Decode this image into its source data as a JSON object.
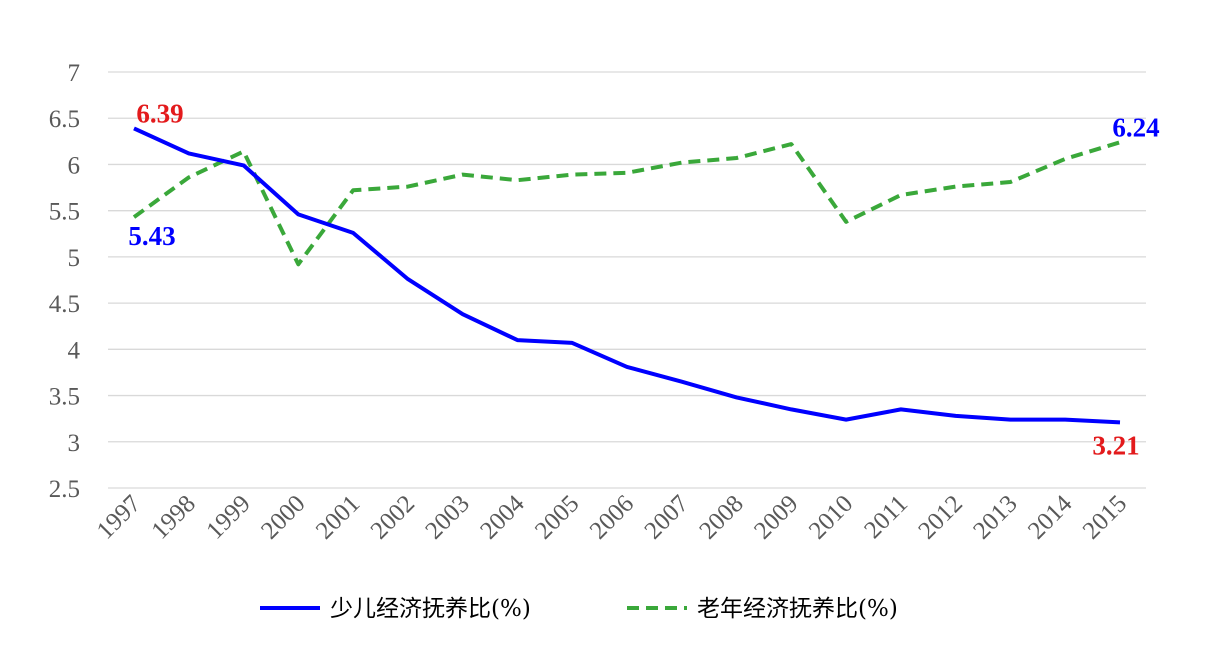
{
  "chart_data": {
    "type": "line",
    "x": [
      "1997",
      "1998",
      "1999",
      "2000",
      "2001",
      "2002",
      "2003",
      "2004",
      "2005",
      "2006",
      "2007",
      "2008",
      "2009",
      "2010",
      "2011",
      "2012",
      "2013",
      "2014",
      "2015"
    ],
    "ylim": [
      2.5,
      7
    ],
    "yticks": [
      "2.5",
      "3",
      "3.5",
      "4",
      "4.5",
      "5",
      "5.5",
      "6",
      "6.5",
      "7"
    ],
    "grid": "horizontal",
    "legend_position": "bottom",
    "series": [
      {
        "name": "少儿经济抚养比(%)",
        "color": "#0000ff",
        "style": "solid",
        "values": [
          6.39,
          6.12,
          5.99,
          5.46,
          5.26,
          4.76,
          4.38,
          4.1,
          4.07,
          3.81,
          3.65,
          3.48,
          3.35,
          3.24,
          3.35,
          3.28,
          3.24,
          3.24,
          3.21
        ]
      },
      {
        "name": "老年经济抚养比(%)",
        "color": "#3aa83a",
        "style": "dashed",
        "values": [
          5.43,
          5.86,
          6.14,
          4.92,
          5.72,
          5.76,
          5.89,
          5.83,
          5.89,
          5.91,
          6.02,
          6.07,
          6.22,
          5.38,
          5.67,
          5.76,
          5.81,
          6.06,
          6.24
        ]
      }
    ],
    "annotations": [
      {
        "text": "6.39",
        "color": "#e31a1c",
        "series": 0,
        "index": 0
      },
      {
        "text": "5.43",
        "color": "#0000ff",
        "series": 1,
        "index": 0
      },
      {
        "text": "6.24",
        "color": "#0000ff",
        "series": 1,
        "index": 18
      },
      {
        "text": "3.21",
        "color": "#e31a1c",
        "series": 0,
        "index": 18
      }
    ]
  }
}
